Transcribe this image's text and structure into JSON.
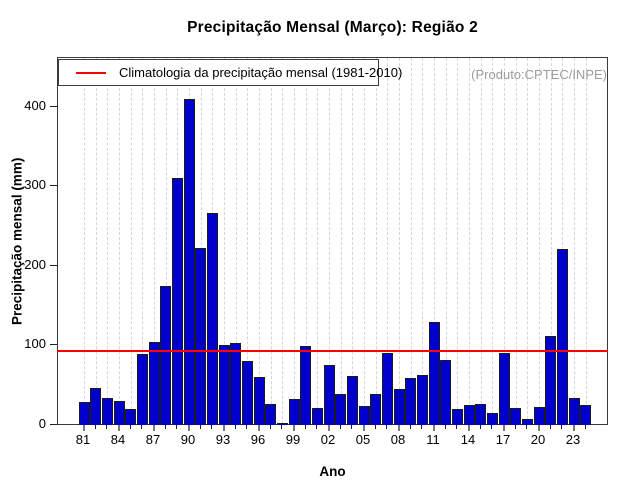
{
  "watermark": "(Produto:CPTEC/INPE)",
  "chart_data": {
    "type": "bar",
    "title": "Precipitação Mensal (Março): Região 2",
    "xlabel": "Ano",
    "ylabel": "Precipitação mensal (mm)",
    "ylim": [
      0,
      462
    ],
    "yticks": [
      0,
      100,
      200,
      300,
      400
    ],
    "x_label_every": 3,
    "grid": {
      "vertical_dashed_per_year": true,
      "color": "#d6d6d6"
    },
    "legend_position": "top-left-inside",
    "categories": [
      "81",
      "82",
      "83",
      "84",
      "85",
      "86",
      "87",
      "88",
      "89",
      "90",
      "91",
      "92",
      "93",
      "94",
      "95",
      "96",
      "97",
      "98",
      "99",
      "00",
      "01",
      "02",
      "03",
      "04",
      "05",
      "06",
      "07",
      "08",
      "09",
      "10",
      "11",
      "12",
      "13",
      "14",
      "15",
      "16",
      "17",
      "18",
      "19",
      "20",
      "21",
      "22",
      "23",
      "24"
    ],
    "values": [
      29,
      46,
      34,
      30,
      20,
      89,
      104,
      175,
      311,
      410,
      223,
      267,
      100,
      103,
      81,
      60,
      26,
      2,
      33,
      99,
      21,
      76,
      39,
      62,
      24,
      39,
      90,
      45,
      59,
      63,
      130,
      82,
      20,
      25,
      26,
      15,
      90,
      21,
      8,
      23,
      112,
      222,
      34,
      25
    ],
    "climatology": {
      "label": "Climatologia da precipitação mensal (1981-2010)",
      "value": 92
    },
    "colors": {
      "bar_fill": "#0000cc",
      "bar_border": "#1b1b1b",
      "climatology_line": "#ff0000",
      "watermark": "#9c9c9c",
      "axis": "#333333",
      "grid": "#d6d6d6"
    }
  }
}
